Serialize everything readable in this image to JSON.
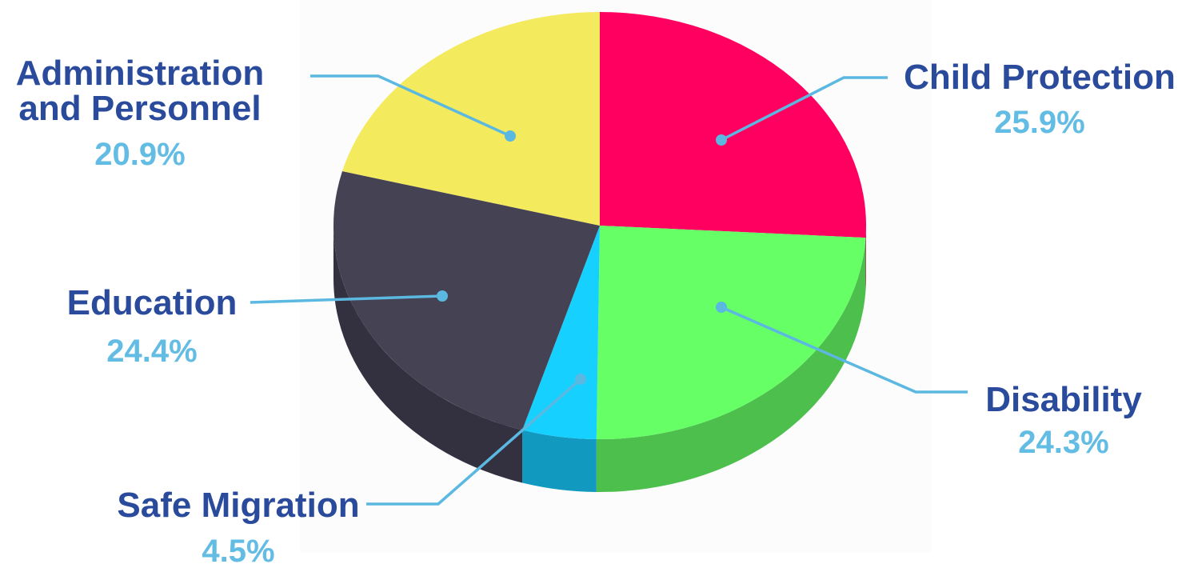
{
  "chart_data": {
    "type": "pie",
    "style": "3d",
    "slices": [
      {
        "label": "Child Protection",
        "value_label": "25.9%",
        "value": 25.9,
        "color": "#ff0060",
        "side_color": "#c80048"
      },
      {
        "label": "Disability",
        "value_label": "24.3%",
        "value": 24.3,
        "color": "#66ff66",
        "side_color": "#4dbf4d"
      },
      {
        "label": "Safe Migration",
        "value_label": "4.5%",
        "value": 4.5,
        "color": "#16d0ff",
        "side_color": "#1199c0"
      },
      {
        "label": "Education",
        "value_label": "24.4%",
        "value": 24.4,
        "color": "#454254",
        "side_color": "#333040"
      },
      {
        "label": "Administration and Personnel",
        "label_lines": [
          "Administration",
          "and Personnel"
        ],
        "value_label": "20.9%",
        "value": 20.9,
        "color": "#f4ea5e",
        "side_color": "#c6bd48"
      }
    ],
    "label_color": "#2a4a9c",
    "value_color": "#62bce3",
    "leader_color": "#5bb8e0"
  }
}
